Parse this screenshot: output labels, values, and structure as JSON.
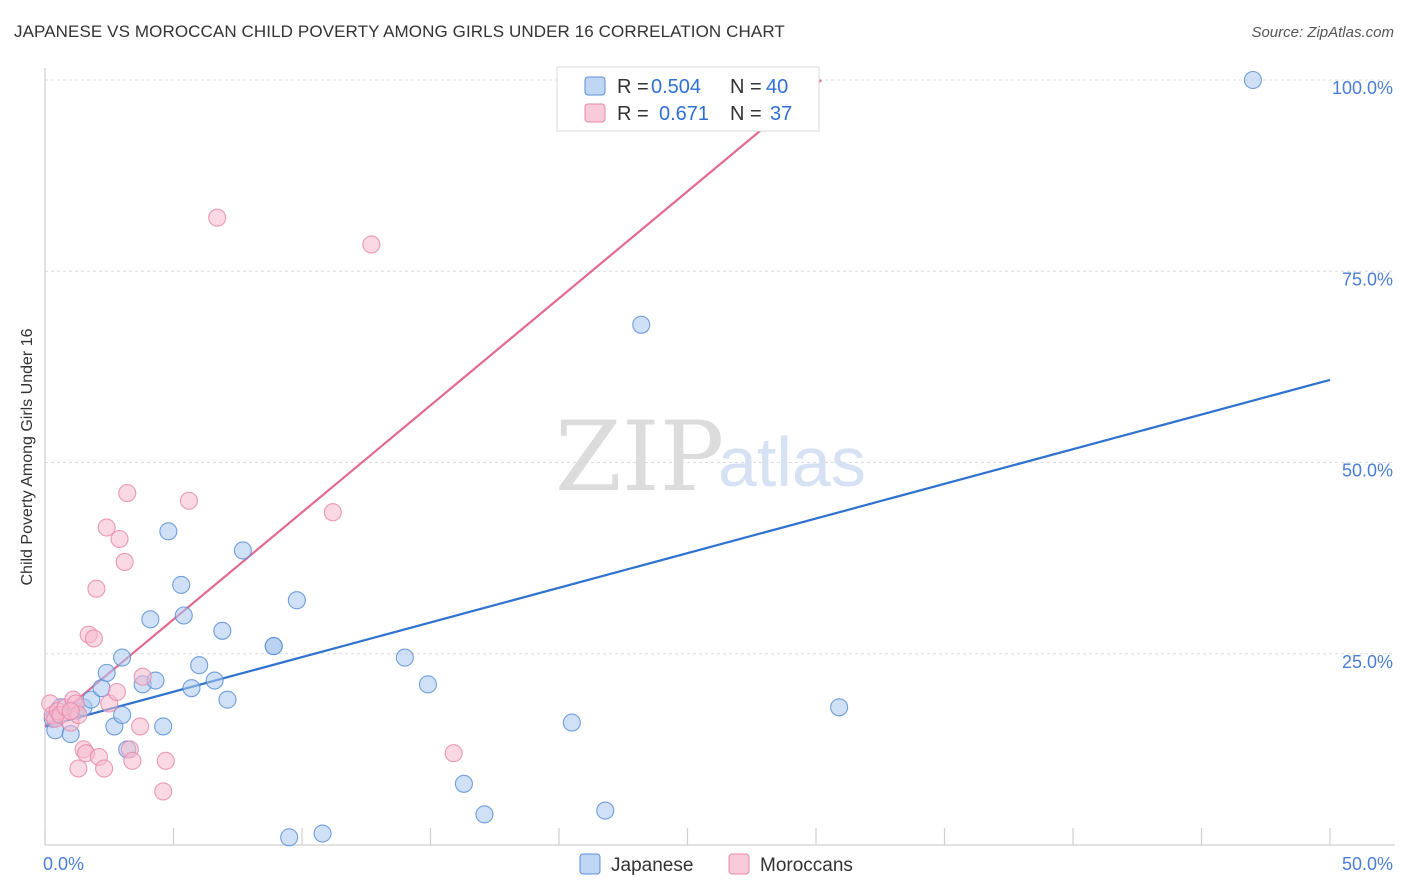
{
  "title": "JAPANESE VS MOROCCAN CHILD POVERTY AMONG GIRLS UNDER 16 CORRELATION CHART",
  "source": "Source: ZipAtlas.com",
  "watermark": {
    "zip": "ZIP",
    "atlas": "atlas"
  },
  "colors": {
    "japanese_fill": "#a9c8f0",
    "japanese_stroke": "#5b8fd6",
    "japanese_line": "#2f72d0",
    "moroccan_fill": "#f6b9cd",
    "moroccan_stroke": "#e78aa8",
    "moroccan_line": "#e26a92",
    "grid": "#dcdcdc",
    "tick_label": "#4a7ed6"
  },
  "legend": {
    "rows": [
      {
        "r_label": "R =",
        "r_value": "0.504",
        "n_label": "N =",
        "n_value": "40"
      },
      {
        "r_label": "R =",
        "r_value": "0.671",
        "n_label": "N =",
        "n_value": "37"
      }
    ]
  },
  "bottom_legend": [
    "Japanese",
    "Moroccans"
  ],
  "chart_data": {
    "type": "scatter",
    "title": "JAPANESE VS MOROCCAN CHILD POVERTY AMONG GIRLS UNDER 16 CORRELATION CHART",
    "xlabel": "",
    "ylabel": "Child Poverty Among Girls Under 16",
    "xlim": [
      0,
      50
    ],
    "ylim": [
      0,
      100
    ],
    "x_tick_labels": [
      "0.0%",
      "50.0%"
    ],
    "y_tick_labels": [
      "25.0%",
      "50.0%",
      "75.0%",
      "100.0%"
    ],
    "y_ticks": [
      25,
      50,
      75,
      100
    ],
    "grid": true,
    "legend_position": "top-center",
    "series": [
      {
        "name": "Japanese",
        "r": 0.504,
        "n": 40,
        "trend": {
          "x": [
            0,
            50
          ],
          "y": [
            15.5,
            60.8
          ]
        },
        "points": [
          [
            0.3,
            16.5
          ],
          [
            0.4,
            15.0
          ],
          [
            0.6,
            18.0
          ],
          [
            1.0,
            14.5
          ],
          [
            1.2,
            17.5
          ],
          [
            1.5,
            18.0
          ],
          [
            1.8,
            19.0
          ],
          [
            2.2,
            20.5
          ],
          [
            2.4,
            22.5
          ],
          [
            2.7,
            15.5
          ],
          [
            3.0,
            17.0
          ],
          [
            3.0,
            24.5
          ],
          [
            3.2,
            12.5
          ],
          [
            3.8,
            21.0
          ],
          [
            4.1,
            29.5
          ],
          [
            4.3,
            21.5
          ],
          [
            4.6,
            15.5
          ],
          [
            4.8,
            41.0
          ],
          [
            5.3,
            34.0
          ],
          [
            5.4,
            30.0
          ],
          [
            5.7,
            20.5
          ],
          [
            6.0,
            23.5
          ],
          [
            6.6,
            21.5
          ],
          [
            6.9,
            28.0
          ],
          [
            7.1,
            19.0
          ],
          [
            7.7,
            38.5
          ],
          [
            8.9,
            26.0
          ],
          [
            8.9,
            26.0
          ],
          [
            9.5,
            1.0
          ],
          [
            9.8,
            32.0
          ],
          [
            10.8,
            1.5
          ],
          [
            14.0,
            24.5
          ],
          [
            14.9,
            21.0
          ],
          [
            16.3,
            8.0
          ],
          [
            17.1,
            4.0
          ],
          [
            20.5,
            16.0
          ],
          [
            21.8,
            4.5
          ],
          [
            23.2,
            68.0
          ],
          [
            30.9,
            18.0
          ],
          [
            47.0,
            100.0
          ]
        ]
      },
      {
        "name": "Moroccans",
        "r": 0.671,
        "n": 37,
        "trend": {
          "x": [
            0,
            30.2
          ],
          "y": [
            15.5,
            100.0
          ]
        },
        "points": [
          [
            0.2,
            18.5
          ],
          [
            0.3,
            17.0
          ],
          [
            0.4,
            16.5
          ],
          [
            0.5,
            17.5
          ],
          [
            0.6,
            17.0
          ],
          [
            0.8,
            18.0
          ],
          [
            1.0,
            16.0
          ],
          [
            1.1,
            19.0
          ],
          [
            1.2,
            18.5
          ],
          [
            1.3,
            10.0
          ],
          [
            1.5,
            12.5
          ],
          [
            1.6,
            12.0
          ],
          [
            1.7,
            27.5
          ],
          [
            1.9,
            27.0
          ],
          [
            2.0,
            33.5
          ],
          [
            2.1,
            11.5
          ],
          [
            2.3,
            10.0
          ],
          [
            2.4,
            41.5
          ],
          [
            2.5,
            18.5
          ],
          [
            2.8,
            20.0
          ],
          [
            2.9,
            40.0
          ],
          [
            3.1,
            37.0
          ],
          [
            3.2,
            46.0
          ],
          [
            3.3,
            12.5
          ],
          [
            3.4,
            11.0
          ],
          [
            3.7,
            15.5
          ],
          [
            3.8,
            22.0
          ],
          [
            4.6,
            7.0
          ],
          [
            4.7,
            11.0
          ],
          [
            5.6,
            45.0
          ],
          [
            6.7,
            82.0
          ],
          [
            11.2,
            43.5
          ],
          [
            12.7,
            78.5
          ],
          [
            15.9,
            12.0
          ],
          [
            25.9,
            100.0
          ],
          [
            1.3,
            17.0
          ],
          [
            1.0,
            17.5
          ]
        ]
      }
    ]
  }
}
